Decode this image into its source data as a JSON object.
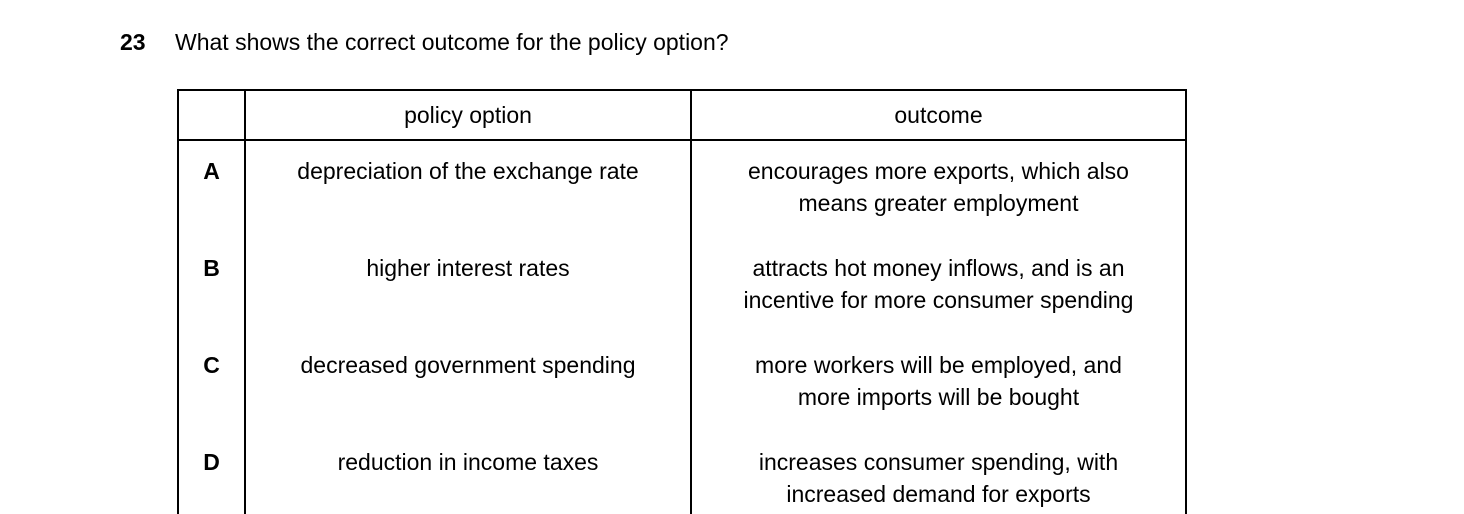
{
  "question": {
    "number": "23",
    "text": "What shows the correct outcome for the policy option?"
  },
  "table": {
    "headers": {
      "letter": "",
      "policy": "policy option",
      "outcome": "outcome"
    },
    "rows": [
      {
        "letter": "A",
        "policy": "depreciation of the exchange rate",
        "outcome_line1": "encourages more exports, which also",
        "outcome_line2": "means greater employment"
      },
      {
        "letter": "B",
        "policy": "higher interest rates",
        "outcome_line1": "attracts hot money inflows, and is an",
        "outcome_line2": "incentive for more consumer spending"
      },
      {
        "letter": "C",
        "policy": "decreased government spending",
        "outcome_line1": "more workers will be employed, and",
        "outcome_line2": "more imports will be bought"
      },
      {
        "letter": "D",
        "policy": "reduction in income taxes",
        "outcome_line1": "increases consumer spending, with",
        "outcome_line2": "increased demand for exports"
      }
    ]
  },
  "colors": {
    "text": "#000000",
    "background": "#ffffff",
    "border": "#000000"
  }
}
